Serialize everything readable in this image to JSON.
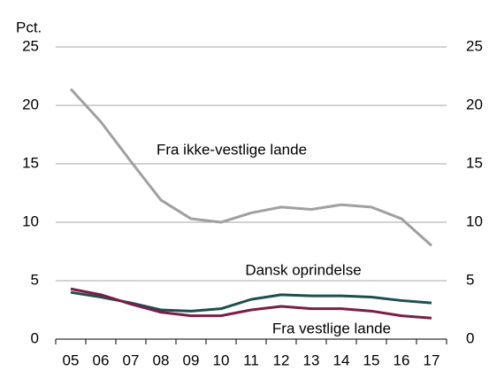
{
  "chart_data": {
    "type": "line",
    "y_label": "Pct.",
    "categories": [
      "05",
      "06",
      "07",
      "08",
      "09",
      "10",
      "11",
      "12",
      "13",
      "14",
      "15",
      "16",
      "17"
    ],
    "series": [
      {
        "name": "Fra ikke-vestlige lande",
        "color": "#a0a0a0",
        "values": [
          21.4,
          18.6,
          15.2,
          11.9,
          10.3,
          10.0,
          10.8,
          11.3,
          11.1,
          11.5,
          11.3,
          10.3,
          8.0
        ]
      },
      {
        "name": "Dansk oprindelse",
        "color": "#1f4e4e",
        "values": [
          4.0,
          3.6,
          3.1,
          2.5,
          2.4,
          2.6,
          3.4,
          3.8,
          3.7,
          3.7,
          3.6,
          3.3,
          3.1
        ]
      },
      {
        "name": "Fra vestlige lande",
        "color": "#7a1e48",
        "values": [
          4.3,
          3.8,
          3.0,
          2.3,
          2.0,
          2.0,
          2.5,
          2.8,
          2.6,
          2.6,
          2.4,
          2.0,
          1.8
        ]
      }
    ],
    "ylim": [
      0,
      25
    ],
    "yticks": [
      0,
      5,
      10,
      15,
      20,
      25
    ],
    "y2lim": [
      0,
      25
    ],
    "y2ticks": [
      0,
      5,
      10,
      15,
      20,
      25
    ],
    "grid": true
  }
}
